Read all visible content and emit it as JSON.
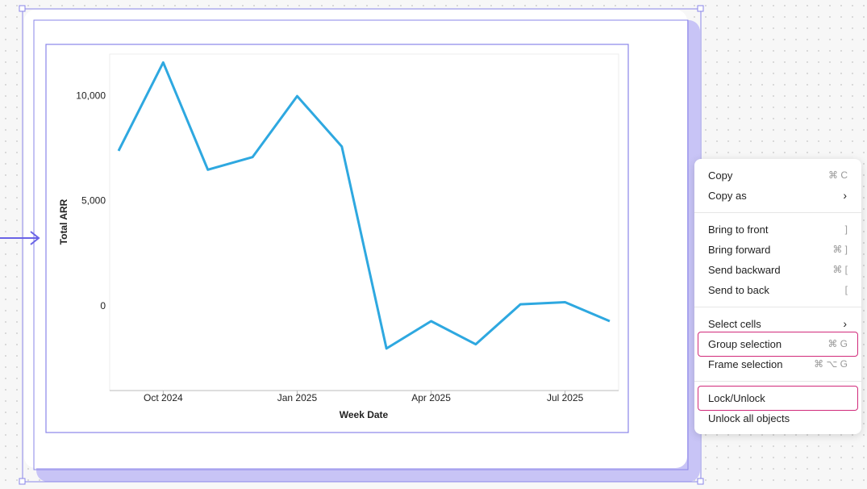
{
  "chart_data": {
    "type": "line",
    "x_label": "Week Date",
    "y_label": "Total ARR",
    "x": [
      "2024-09",
      "2024-10",
      "2024-11",
      "2024-12",
      "2025-01",
      "2025-02",
      "2025-03",
      "2025-04",
      "2025-05",
      "2025-06",
      "2025-07",
      "2025-08"
    ],
    "series": [
      {
        "color": "#2ea8e0",
        "values": [
          7400,
          11600,
          6500,
          7100,
          10000,
          7600,
          -2000,
          -700,
          -1800,
          100,
          200,
          -700
        ]
      }
    ],
    "xlim": [
      "2024-09",
      "2025-08"
    ],
    "xticks": [
      {
        "value": "2024-10",
        "label": "Oct 2024"
      },
      {
        "value": "2025-01",
        "label": "Jan 2025"
      },
      {
        "value": "2025-04",
        "label": "Apr 2025"
      },
      {
        "value": "2025-07",
        "label": "Jul 2025"
      }
    ],
    "ylim": [
      -4000,
      12000
    ],
    "yticks": [
      0,
      {
        "value": 5000,
        "label": "5,000"
      },
      {
        "value": 10000,
        "label": "10,000"
      }
    ]
  },
  "context_menu": {
    "groups": [
      [
        {
          "label": "Copy",
          "shortcut": "⌘ C"
        },
        {
          "label": "Copy as",
          "submenu": true
        }
      ],
      [
        {
          "label": "Bring to front",
          "shortcut": "]"
        },
        {
          "label": "Bring forward",
          "shortcut": "⌘ ]"
        },
        {
          "label": "Send backward",
          "shortcut": "⌘ ["
        },
        {
          "label": "Send to back",
          "shortcut": "["
        }
      ],
      [
        {
          "label": "Select cells",
          "submenu": true
        },
        {
          "label": "Group selection",
          "shortcut": "⌘ G",
          "highlighted": true
        },
        {
          "label": "Frame selection",
          "shortcut": "⌘ ⌥ G"
        }
      ],
      [
        {
          "label": "Lock/Unlock",
          "highlighted": true
        },
        {
          "label": "Unlock all objects"
        }
      ]
    ]
  }
}
